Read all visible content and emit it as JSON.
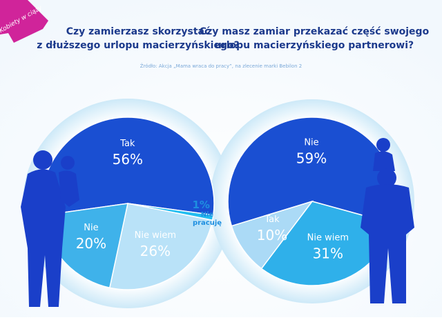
{
  "banner": "Kobiety w ciąży",
  "source": "Źródło: Akcja „Mama wraca do pracy”, na zlecenie marki Bebilon 2",
  "chart_data": [
    {
      "type": "pie",
      "title": [
        "Czy zamierzasz skorzystać",
        "z dłuższego urlopu macierzyńskiego?"
      ],
      "categories": [
        "Tak",
        "Nie pracuję",
        "Nie wiem",
        "Nie"
      ],
      "values": [
        56,
        1,
        26,
        20
      ],
      "value_labels": [
        "56%",
        "1%",
        "26%",
        "20%"
      ],
      "colors": [
        "#1a4fd2",
        "#22bdf0",
        "#b9e2f8",
        "#3fb2ea"
      ]
    },
    {
      "type": "pie",
      "title": [
        "Czy masz zamiar przekazać część swojego",
        "urlopu macierzyńskiego partnerowi?"
      ],
      "categories": [
        "Nie",
        "Nie wiem",
        "Tak"
      ],
      "values": [
        59,
        31,
        10
      ],
      "value_labels": [
        "59%",
        "31%",
        "10%"
      ],
      "colors": [
        "#1a4fd2",
        "#2fb0ea",
        "#abdaf6"
      ]
    }
  ]
}
